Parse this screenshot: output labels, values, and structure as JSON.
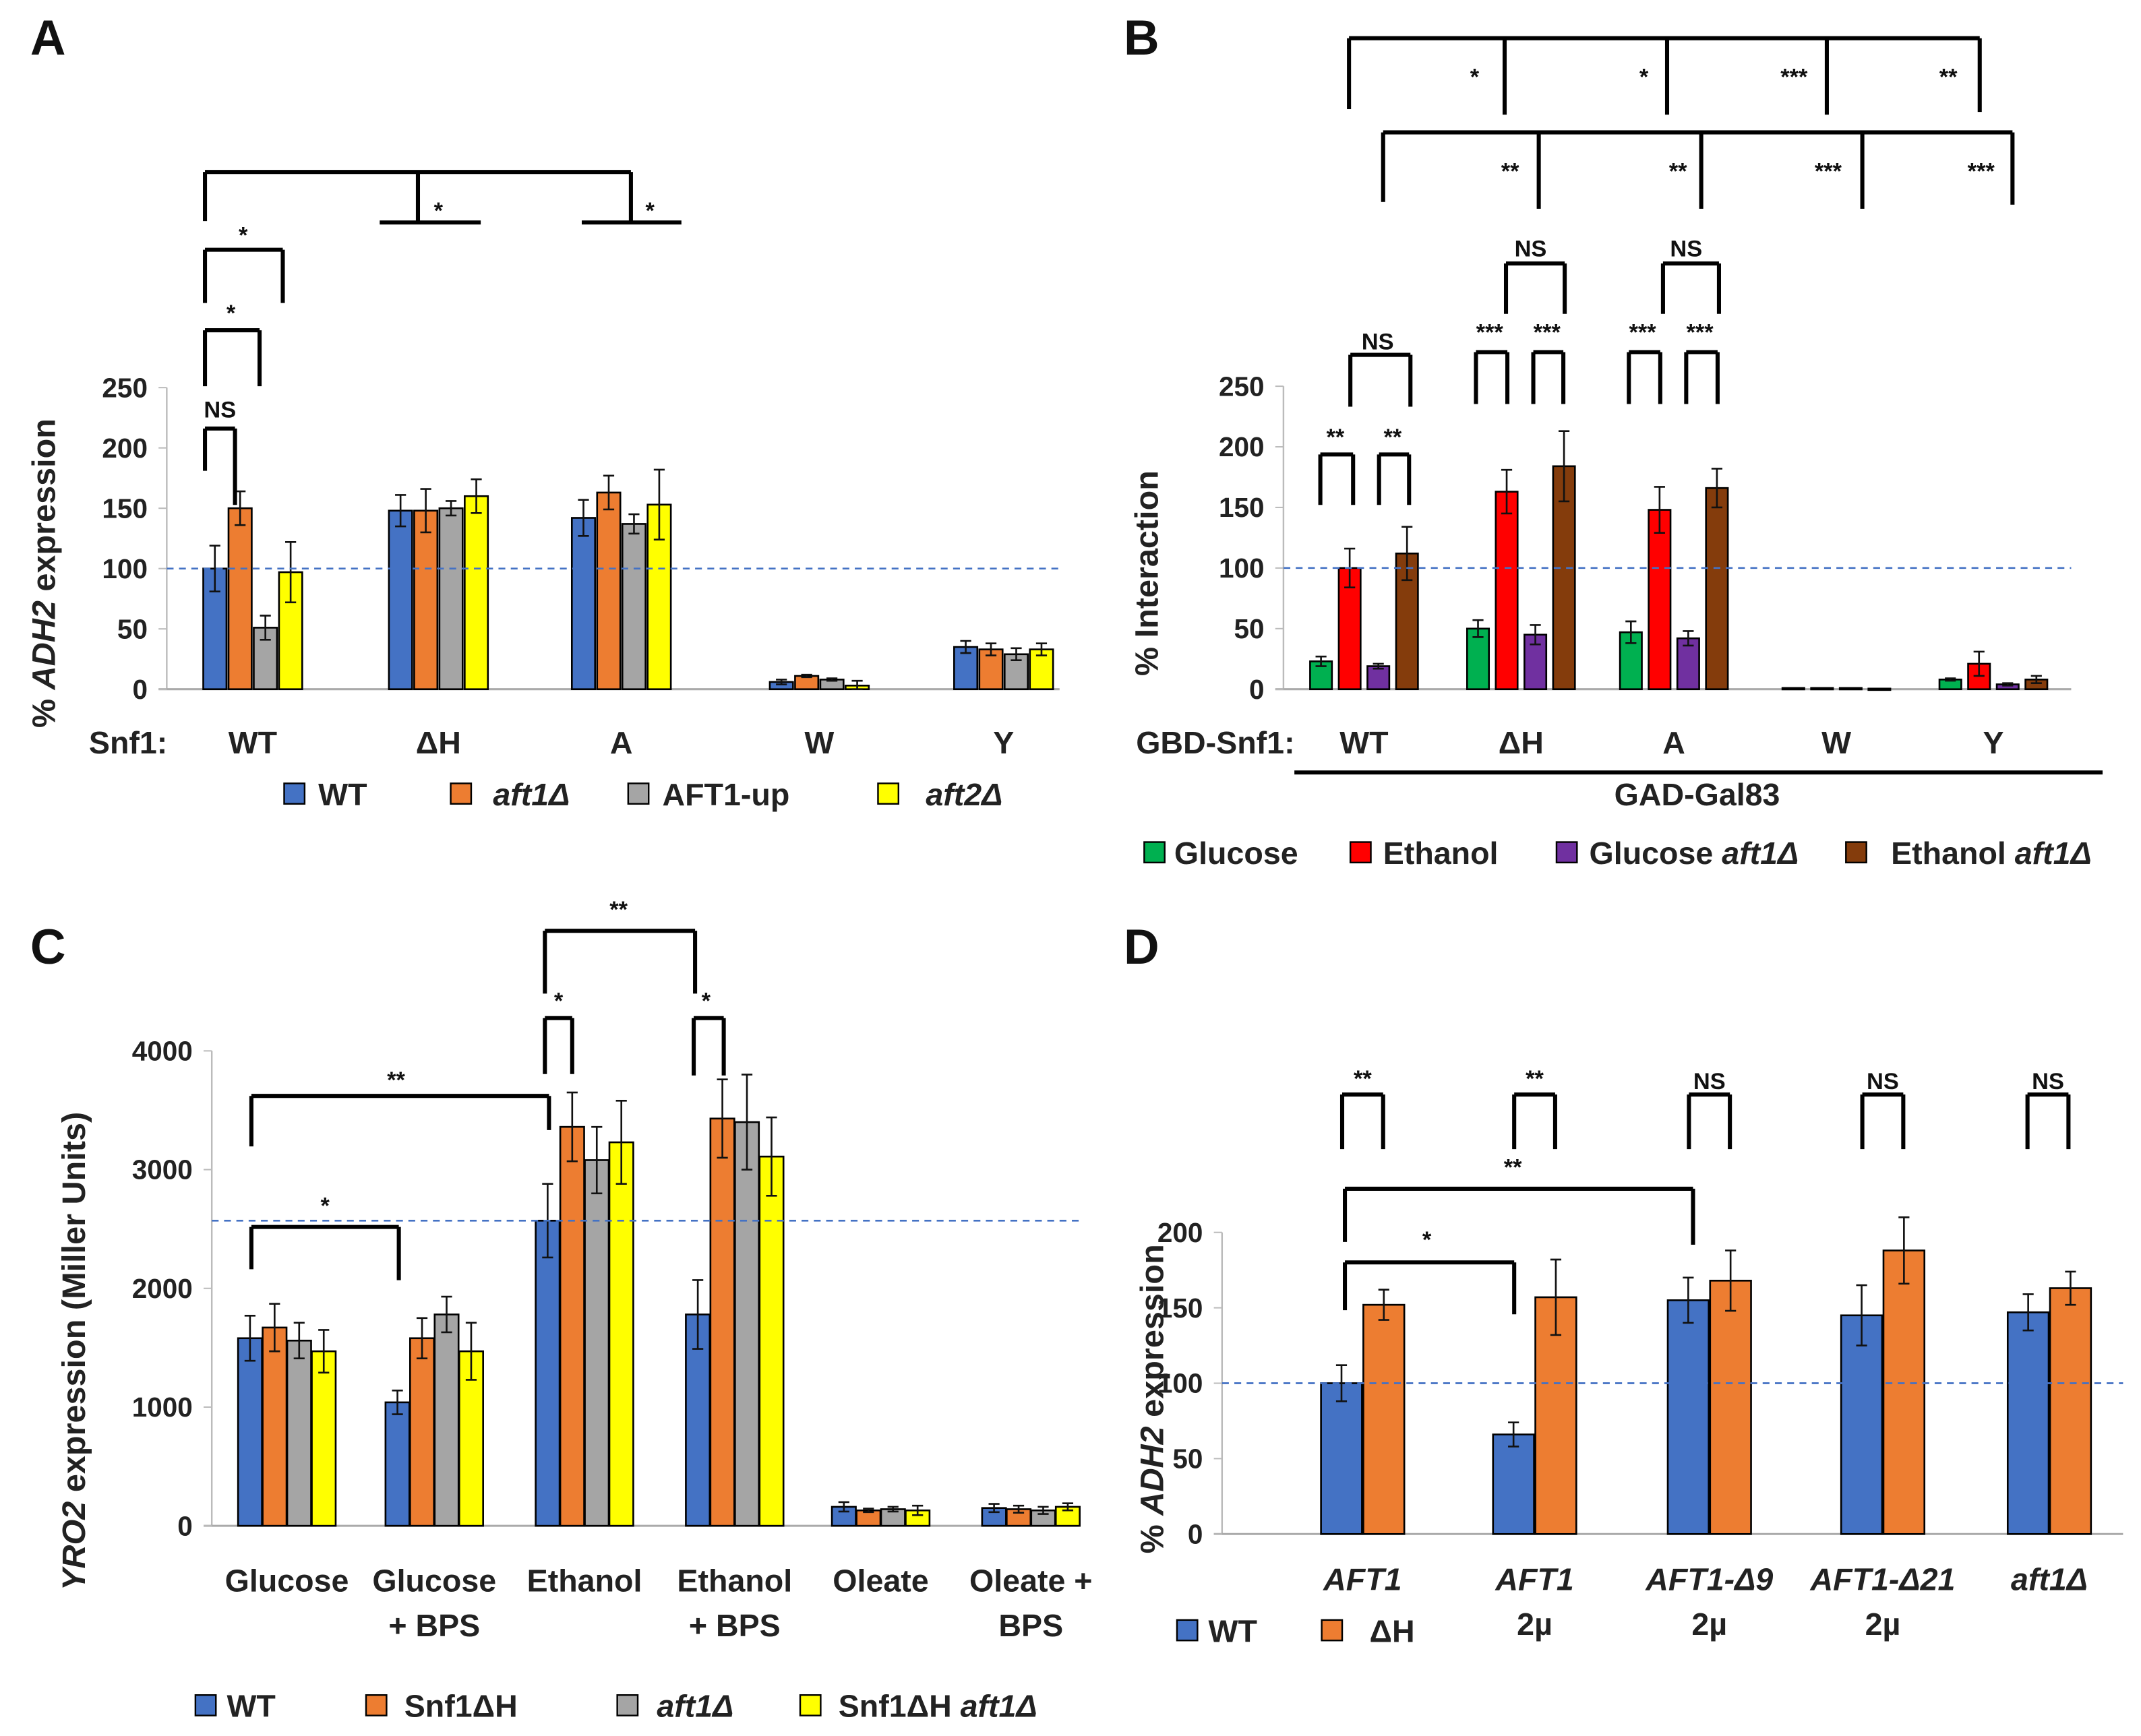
{
  "colors": {
    "wt": "#4472C4",
    "orange": "#ED7D31",
    "gray": "#A5A5A5",
    "yellow": "#FFFF00",
    "green": "#00B050",
    "red": "#FF0000",
    "purple": "#7030A0",
    "brown": "#843C0C",
    "ref_line": "#4472C4"
  },
  "chart_data": [
    {
      "panel": "A",
      "type": "bar",
      "ylabel": [
        {
          "text": "% ",
          "italic": false
        },
        {
          "text": "ADH2",
          "italic": true
        },
        {
          "text": " expression",
          "italic": false
        }
      ],
      "xprefix": "Snf1:",
      "ylim": [
        0,
        250
      ],
      "yticks": [
        0,
        50,
        100,
        150,
        200,
        250
      ],
      "reference_line": 100,
      "categories": [
        [
          "WT"
        ],
        [
          "ΔH"
        ],
        [
          "A"
        ],
        [
          "W"
        ],
        [
          "Y"
        ]
      ],
      "series": [
        {
          "name": [
            {
              "text": "WT",
              "italic": false
            }
          ],
          "color": "#4472C4",
          "values": [
            100,
            148,
            142,
            6,
            35
          ],
          "errors": [
            19,
            13,
            15,
            2,
            5
          ]
        },
        {
          "name": [
            {
              "text": "aft1Δ",
              "italic": true
            }
          ],
          "color": "#ED7D31",
          "values": [
            150,
            148,
            163,
            11,
            33
          ],
          "errors": [
            14,
            18,
            14,
            1,
            5
          ]
        },
        {
          "name": [
            {
              "text": "AFT1-up",
              "italic": false
            }
          ],
          "color": "#A5A5A5",
          "values": [
            51,
            150,
            137,
            8,
            29
          ],
          "errors": [
            10,
            6,
            8,
            1,
            5
          ]
        },
        {
          "name": [
            {
              "text": "aft2Δ",
              "italic": true
            }
          ],
          "color": "#FFFF00",
          "values": [
            97,
            160,
            153,
            3,
            33
          ],
          "errors": [
            25,
            14,
            29,
            4,
            5
          ]
        }
      ],
      "annotations": [
        "*",
        "*",
        "NS",
        "*",
        "*"
      ],
      "legend": "bottom"
    },
    {
      "panel": "B",
      "type": "bar",
      "ylabel": [
        {
          "text": "%  Interaction",
          "italic": false
        }
      ],
      "xprefix": "GBD-Snf1:",
      "xgroup_label": "GAD-Gal83",
      "ylim": [
        0,
        250
      ],
      "yticks": [
        0,
        50,
        100,
        150,
        200,
        250
      ],
      "reference_line": 100,
      "categories": [
        [
          "WT"
        ],
        [
          "ΔH"
        ],
        [
          "A"
        ],
        [
          "W"
        ],
        [
          "Y"
        ]
      ],
      "series": [
        {
          "name": [
            {
              "text": "Glucose",
              "italic": false
            }
          ],
          "color": "#00B050",
          "values": [
            23,
            50,
            47,
            1,
            8
          ],
          "errors": [
            4,
            7,
            9,
            0,
            1
          ]
        },
        {
          "name": [
            {
              "text": "Ethanol",
              "italic": false
            }
          ],
          "color": "#FF0000",
          "values": [
            100,
            163,
            148,
            1,
            21
          ],
          "errors": [
            16,
            18,
            19,
            0,
            10
          ]
        },
        {
          "name": [
            {
              "text": "Glucose ",
              "italic": false
            },
            {
              "text": "aft1Δ",
              "italic": true
            }
          ],
          "color": "#7030A0",
          "values": [
            19,
            45,
            42,
            1,
            4
          ],
          "errors": [
            2,
            8,
            6,
            0,
            1
          ]
        },
        {
          "name": [
            {
              "text": "Ethanol ",
              "italic": false
            },
            {
              "text": "aft1Δ",
              "italic": true
            }
          ],
          "color": "#843C0C",
          "values": [
            112,
            184,
            166,
            0.5,
            8
          ],
          "errors": [
            22,
            29,
            16,
            0,
            3
          ]
        }
      ],
      "annotations": [
        "*",
        "*",
        "***",
        "**",
        "**",
        "**",
        "***",
        "***",
        "**",
        "**",
        "NS",
        "***",
        "***",
        "NS",
        "***",
        "***",
        "NS"
      ],
      "legend": "bottom"
    },
    {
      "panel": "C",
      "type": "bar",
      "ylabel": [
        {
          "text": "YRO2",
          "italic": true
        },
        {
          "text": " expression (Miller Units)",
          "italic": false
        }
      ],
      "ylim": [
        0,
        4000
      ],
      "yticks": [
        0,
        1000,
        2000,
        3000,
        4000
      ],
      "reference_line": 2570,
      "categories": [
        [
          "Glucose"
        ],
        [
          "Glucose",
          "+ BPS"
        ],
        [
          "Ethanol"
        ],
        [
          "Ethanol",
          "+ BPS"
        ],
        [
          "Oleate"
        ],
        [
          "Oleate +",
          "BPS"
        ]
      ],
      "series": [
        {
          "name": [
            {
              "text": "WT",
              "italic": false
            }
          ],
          "color": "#4472C4",
          "values": [
            1580,
            1040,
            2570,
            1780,
            160,
            150
          ],
          "errors": [
            190,
            100,
            310,
            290,
            40,
            35
          ]
        },
        {
          "name": [
            {
              "text": "Snf1ΔH",
              "italic": false
            }
          ],
          "color": "#ED7D31",
          "values": [
            1670,
            1580,
            3360,
            3430,
            130,
            140
          ],
          "errors": [
            200,
            170,
            290,
            330,
            15,
            30
          ]
        },
        {
          "name": [
            {
              "text": "aft1Δ",
              "italic": true
            }
          ],
          "color": "#A5A5A5",
          "values": [
            1560,
            1780,
            3080,
            3400,
            140,
            130
          ],
          "errors": [
            150,
            150,
            280,
            400,
            20,
            30
          ]
        },
        {
          "name": [
            {
              "text": "Snf1ΔH ",
              "italic": false
            },
            {
              "text": "aft1Δ",
              "italic": true
            }
          ],
          "color": "#FFFF00",
          "values": [
            1470,
            1470,
            3230,
            3110,
            130,
            160
          ],
          "errors": [
            180,
            240,
            350,
            330,
            40,
            30
          ]
        }
      ],
      "annotations": [
        "*",
        "*",
        "**",
        "**",
        "*"
      ],
      "legend": "bottom"
    },
    {
      "panel": "D",
      "type": "bar",
      "ylabel": [
        {
          "text": "% ",
          "italic": false
        },
        {
          "text": "ADH2",
          "italic": true
        },
        {
          "text": " expression",
          "italic": false
        }
      ],
      "ylim": [
        0,
        200
      ],
      "yticks": [
        0,
        50,
        100,
        150,
        200
      ],
      "reference_line": 100,
      "categories": [
        [
          "AFT1"
        ],
        [
          "AFT1",
          "2µ"
        ],
        [
          "AFT1-Δ9",
          "2µ"
        ],
        [
          "AFT1-Δ21",
          "2µ"
        ],
        [
          "aft1Δ"
        ]
      ],
      "series": [
        {
          "name": [
            {
              "text": "WT",
              "italic": false
            }
          ],
          "color": "#4472C4",
          "values": [
            100,
            66,
            155,
            145,
            147
          ],
          "errors": [
            12,
            8,
            15,
            20,
            12
          ]
        },
        {
          "name": [
            {
              "text": "ΔH",
              "italic": false
            }
          ],
          "color": "#ED7D31",
          "values": [
            152,
            157,
            168,
            188,
            163
          ],
          "errors": [
            10,
            25,
            20,
            22,
            11
          ]
        }
      ],
      "annotations": [
        "**",
        "**",
        "NS",
        "NS",
        "NS",
        "**",
        "*"
      ],
      "legend": "bottom-left"
    }
  ]
}
